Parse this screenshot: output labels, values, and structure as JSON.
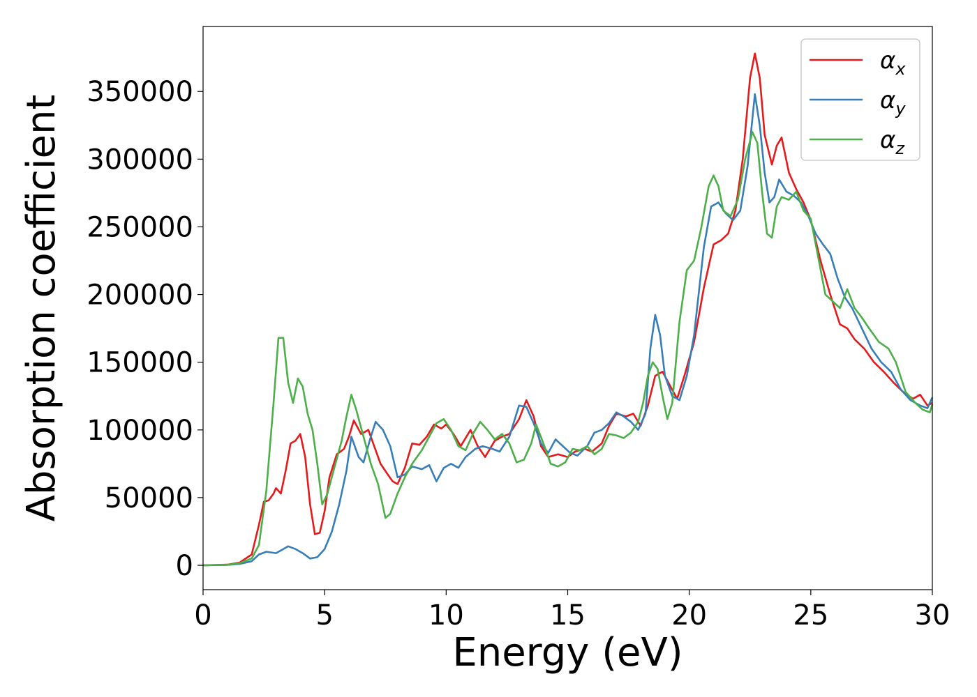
{
  "chart_data": {
    "type": "line",
    "title": "",
    "xlabel": "Energy (eV)",
    "ylabel": "Absorption coefficient",
    "xlim": [
      0,
      30
    ],
    "ylim": [
      -18000,
      398000
    ],
    "xticks": [
      0,
      5,
      10,
      15,
      20,
      25,
      30
    ],
    "yticks": [
      0,
      50000,
      100000,
      150000,
      200000,
      250000,
      300000,
      350000
    ],
    "grid": false,
    "legend_position": "top-right",
    "series": [
      {
        "name": "α",
        "subscript": "x",
        "color": "#e41a1c",
        "points": [
          [
            0,
            0
          ],
          [
            1,
            500
          ],
          [
            1.5,
            2000
          ],
          [
            2,
            8000
          ],
          [
            2.3,
            30000
          ],
          [
            2.5,
            47000
          ],
          [
            2.7,
            48000
          ],
          [
            2.9,
            53000
          ],
          [
            3.0,
            57000
          ],
          [
            3.2,
            53000
          ],
          [
            3.4,
            70000
          ],
          [
            3.6,
            90000
          ],
          [
            3.8,
            92000
          ],
          [
            4.0,
            97000
          ],
          [
            4.2,
            80000
          ],
          [
            4.4,
            45000
          ],
          [
            4.6,
            23000
          ],
          [
            4.8,
            24000
          ],
          [
            5.0,
            40000
          ],
          [
            5.2,
            65000
          ],
          [
            5.5,
            82000
          ],
          [
            5.8,
            86000
          ],
          [
            6.0,
            95000
          ],
          [
            6.2,
            107000
          ],
          [
            6.5,
            97000
          ],
          [
            6.8,
            100000
          ],
          [
            7.0,
            90000
          ],
          [
            7.3,
            75000
          ],
          [
            7.6,
            67000
          ],
          [
            7.8,
            62000
          ],
          [
            8.0,
            60000
          ],
          [
            8.3,
            72000
          ],
          [
            8.6,
            90000
          ],
          [
            8.9,
            89000
          ],
          [
            9.2,
            95000
          ],
          [
            9.5,
            104000
          ],
          [
            9.8,
            101000
          ],
          [
            10.0,
            104000
          ],
          [
            10.3,
            97000
          ],
          [
            10.6,
            88000
          ],
          [
            11.0,
            100000
          ],
          [
            11.3,
            88000
          ],
          [
            11.6,
            80000
          ],
          [
            12.0,
            92000
          ],
          [
            12.3,
            95000
          ],
          [
            12.6,
            97000
          ],
          [
            13.0,
            108000
          ],
          [
            13.3,
            122000
          ],
          [
            13.6,
            110000
          ],
          [
            13.9,
            88000
          ],
          [
            14.2,
            80000
          ],
          [
            14.6,
            82000
          ],
          [
            15.0,
            80000
          ],
          [
            15.3,
            84000
          ],
          [
            15.7,
            86000
          ],
          [
            16.0,
            84000
          ],
          [
            16.4,
            90000
          ],
          [
            16.7,
            103000
          ],
          [
            17.0,
            112000
          ],
          [
            17.4,
            110000
          ],
          [
            17.7,
            112000
          ],
          [
            18.0,
            103000
          ],
          [
            18.3,
            118000
          ],
          [
            18.6,
            140000
          ],
          [
            18.9,
            143000
          ],
          [
            19.2,
            133000
          ],
          [
            19.5,
            123000
          ],
          [
            19.8,
            140000
          ],
          [
            20.2,
            165000
          ],
          [
            20.6,
            205000
          ],
          [
            21.0,
            237000
          ],
          [
            21.3,
            240000
          ],
          [
            21.6,
            245000
          ],
          [
            21.9,
            262000
          ],
          [
            22.2,
            300000
          ],
          [
            22.5,
            360000
          ],
          [
            22.7,
            378000
          ],
          [
            22.9,
            360000
          ],
          [
            23.1,
            318000
          ],
          [
            23.4,
            296000
          ],
          [
            23.6,
            310000
          ],
          [
            23.8,
            316000
          ],
          [
            24.1,
            290000
          ],
          [
            24.4,
            278000
          ],
          [
            24.7,
            268000
          ],
          [
            25.0,
            255000
          ],
          [
            25.4,
            225000
          ],
          [
            25.8,
            200000
          ],
          [
            26.2,
            178000
          ],
          [
            26.5,
            175000
          ],
          [
            26.8,
            167000
          ],
          [
            27.2,
            160000
          ],
          [
            27.6,
            150000
          ],
          [
            28.0,
            143000
          ],
          [
            28.4,
            135000
          ],
          [
            28.8,
            128000
          ],
          [
            29.2,
            123000
          ],
          [
            29.5,
            126000
          ],
          [
            29.8,
            118000
          ],
          [
            30.0,
            120000
          ]
        ]
      },
      {
        "name": "α",
        "subscript": "y",
        "color": "#377eb8",
        "points": [
          [
            0,
            0
          ],
          [
            1,
            300
          ],
          [
            1.5,
            1000
          ],
          [
            2,
            3000
          ],
          [
            2.3,
            8000
          ],
          [
            2.6,
            10000
          ],
          [
            3.0,
            9000
          ],
          [
            3.2,
            11000
          ],
          [
            3.5,
            14000
          ],
          [
            3.8,
            12000
          ],
          [
            4.1,
            9000
          ],
          [
            4.4,
            5000
          ],
          [
            4.7,
            6000
          ],
          [
            5.0,
            12000
          ],
          [
            5.3,
            25000
          ],
          [
            5.6,
            45000
          ],
          [
            5.9,
            70000
          ],
          [
            6.1,
            95000
          ],
          [
            6.4,
            80000
          ],
          [
            6.6,
            76000
          ],
          [
            6.9,
            95000
          ],
          [
            7.1,
            106000
          ],
          [
            7.4,
            100000
          ],
          [
            7.7,
            88000
          ],
          [
            8.0,
            65000
          ],
          [
            8.3,
            67000
          ],
          [
            8.6,
            73000
          ],
          [
            9.0,
            71000
          ],
          [
            9.3,
            74000
          ],
          [
            9.6,
            62000
          ],
          [
            9.9,
            72000
          ],
          [
            10.2,
            75000
          ],
          [
            10.5,
            72000
          ],
          [
            10.8,
            80000
          ],
          [
            11.2,
            86000
          ],
          [
            11.5,
            88000
          ],
          [
            11.9,
            86000
          ],
          [
            12.2,
            84000
          ],
          [
            12.6,
            95000
          ],
          [
            13.0,
            118000
          ],
          [
            13.3,
            117000
          ],
          [
            13.6,
            105000
          ],
          [
            13.9,
            90000
          ],
          [
            14.2,
            83000
          ],
          [
            14.5,
            93000
          ],
          [
            14.8,
            88000
          ],
          [
            15.1,
            83000
          ],
          [
            15.4,
            81000
          ],
          [
            15.8,
            88000
          ],
          [
            16.1,
            98000
          ],
          [
            16.4,
            100000
          ],
          [
            16.7,
            105000
          ],
          [
            17.0,
            113000
          ],
          [
            17.3,
            110000
          ],
          [
            17.6,
            106000
          ],
          [
            17.9,
            100000
          ],
          [
            18.2,
            112000
          ],
          [
            18.4,
            160000
          ],
          [
            18.6,
            185000
          ],
          [
            18.8,
            170000
          ],
          [
            19.0,
            140000
          ],
          [
            19.3,
            125000
          ],
          [
            19.6,
            122000
          ],
          [
            19.9,
            140000
          ],
          [
            20.2,
            170000
          ],
          [
            20.6,
            235000
          ],
          [
            20.9,
            265000
          ],
          [
            21.2,
            268000
          ],
          [
            21.5,
            260000
          ],
          [
            21.8,
            255000
          ],
          [
            22.1,
            262000
          ],
          [
            22.4,
            295000
          ],
          [
            22.7,
            348000
          ],
          [
            22.9,
            325000
          ],
          [
            23.1,
            290000
          ],
          [
            23.3,
            268000
          ],
          [
            23.5,
            272000
          ],
          [
            23.7,
            285000
          ],
          [
            24.0,
            276000
          ],
          [
            24.3,
            273000
          ],
          [
            24.6,
            268000
          ],
          [
            24.9,
            258000
          ],
          [
            25.2,
            245000
          ],
          [
            25.5,
            237000
          ],
          [
            25.8,
            230000
          ],
          [
            26.1,
            212000
          ],
          [
            26.4,
            198000
          ],
          [
            26.7,
            190000
          ],
          [
            27.1,
            175000
          ],
          [
            27.5,
            160000
          ],
          [
            27.9,
            150000
          ],
          [
            28.3,
            143000
          ],
          [
            28.7,
            130000
          ],
          [
            29.1,
            122000
          ],
          [
            29.5,
            118000
          ],
          [
            29.8,
            116000
          ],
          [
            30.0,
            124000
          ]
        ]
      },
      {
        "name": "α",
        "subscript": "z",
        "color": "#4daf4a",
        "points": [
          [
            0,
            0
          ],
          [
            1,
            400
          ],
          [
            1.5,
            1500
          ],
          [
            2,
            5000
          ],
          [
            2.3,
            15000
          ],
          [
            2.6,
            55000
          ],
          [
            2.9,
            120000
          ],
          [
            3.1,
            168000
          ],
          [
            3.3,
            168000
          ],
          [
            3.5,
            135000
          ],
          [
            3.7,
            120000
          ],
          [
            3.9,
            138000
          ],
          [
            4.1,
            132000
          ],
          [
            4.3,
            112000
          ],
          [
            4.5,
            100000
          ],
          [
            4.7,
            75000
          ],
          [
            4.9,
            45000
          ],
          [
            5.1,
            52000
          ],
          [
            5.4,
            72000
          ],
          [
            5.7,
            92000
          ],
          [
            5.9,
            110000
          ],
          [
            6.1,
            126000
          ],
          [
            6.3,
            115000
          ],
          [
            6.6,
            95000
          ],
          [
            6.9,
            75000
          ],
          [
            7.2,
            60000
          ],
          [
            7.5,
            35000
          ],
          [
            7.7,
            38000
          ],
          [
            8.0,
            53000
          ],
          [
            8.3,
            65000
          ],
          [
            8.6,
            75000
          ],
          [
            9.0,
            85000
          ],
          [
            9.3,
            95000
          ],
          [
            9.6,
            105000
          ],
          [
            9.9,
            108000
          ],
          [
            10.2,
            100000
          ],
          [
            10.5,
            88000
          ],
          [
            10.8,
            85000
          ],
          [
            11.1,
            97000
          ],
          [
            11.4,
            106000
          ],
          [
            11.7,
            100000
          ],
          [
            12.0,
            93000
          ],
          [
            12.3,
            97000
          ],
          [
            12.6,
            90000
          ],
          [
            12.9,
            76000
          ],
          [
            13.2,
            78000
          ],
          [
            13.5,
            90000
          ],
          [
            13.7,
            104000
          ],
          [
            14.0,
            90000
          ],
          [
            14.3,
            75000
          ],
          [
            14.6,
            73000
          ],
          [
            14.9,
            76000
          ],
          [
            15.2,
            86000
          ],
          [
            15.5,
            85000
          ],
          [
            15.8,
            88000
          ],
          [
            16.1,
            82000
          ],
          [
            16.4,
            86000
          ],
          [
            16.7,
            97000
          ],
          [
            17.0,
            96000
          ],
          [
            17.3,
            94000
          ],
          [
            17.6,
            98000
          ],
          [
            17.9,
            106000
          ],
          [
            18.1,
            120000
          ],
          [
            18.3,
            140000
          ],
          [
            18.5,
            150000
          ],
          [
            18.7,
            145000
          ],
          [
            18.9,
            125000
          ],
          [
            19.1,
            108000
          ],
          [
            19.3,
            120000
          ],
          [
            19.6,
            180000
          ],
          [
            19.9,
            218000
          ],
          [
            20.2,
            225000
          ],
          [
            20.5,
            250000
          ],
          [
            20.8,
            280000
          ],
          [
            21.0,
            288000
          ],
          [
            21.2,
            280000
          ],
          [
            21.4,
            262000
          ],
          [
            21.7,
            258000
          ],
          [
            22.0,
            270000
          ],
          [
            22.3,
            300000
          ],
          [
            22.6,
            320000
          ],
          [
            22.8,
            312000
          ],
          [
            23.0,
            275000
          ],
          [
            23.2,
            245000
          ],
          [
            23.4,
            242000
          ],
          [
            23.6,
            265000
          ],
          [
            23.8,
            272000
          ],
          [
            24.1,
            270000
          ],
          [
            24.4,
            276000
          ],
          [
            24.7,
            262000
          ],
          [
            25.0,
            256000
          ],
          [
            25.3,
            228000
          ],
          [
            25.6,
            200000
          ],
          [
            25.9,
            195000
          ],
          [
            26.2,
            190000
          ],
          [
            26.5,
            204000
          ],
          [
            26.8,
            190000
          ],
          [
            27.1,
            183000
          ],
          [
            27.4,
            175000
          ],
          [
            27.8,
            165000
          ],
          [
            28.2,
            160000
          ],
          [
            28.5,
            150000
          ],
          [
            28.9,
            128000
          ],
          [
            29.3,
            120000
          ],
          [
            29.6,
            115000
          ],
          [
            29.9,
            113000
          ],
          [
            30.0,
            119000
          ]
        ]
      }
    ]
  }
}
